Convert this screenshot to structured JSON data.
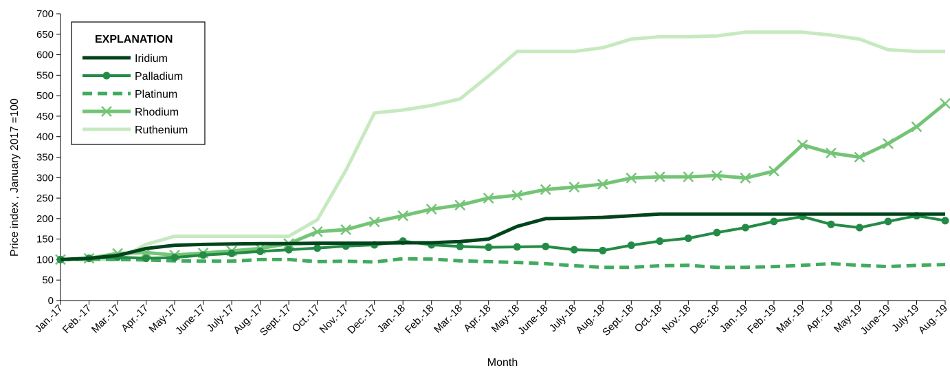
{
  "chart_data": {
    "type": "line",
    "xlabel": "Month",
    "ylabel": "Price index , January 2017 =100",
    "ylim": [
      0,
      700
    ],
    "yticks": [
      0,
      50,
      100,
      150,
      200,
      250,
      300,
      350,
      400,
      450,
      500,
      550,
      600,
      650,
      700
    ],
    "grid": false,
    "legend": {
      "title": "EXPLANATION",
      "placement": "top-left"
    },
    "categories": [
      "Jan.-17",
      "Feb.-17",
      "Mar.-17",
      "Apr.-17",
      "May-17",
      "June-17",
      "July-17",
      "Aug.-17",
      "Sept.-17",
      "Oct.-17",
      "Nov.-17",
      "Dec.-17",
      "Jan.-18",
      "Feb.-18",
      "Mar.-18",
      "Apr.-18",
      "May-18",
      "June-18",
      "July-18",
      "Aug.-18",
      "Sept.-18",
      "Oct.-18",
      "Nov.-18",
      "Dec.-18",
      "Jan.-19",
      "Feb.-19",
      "Mar.-19",
      "Apr.-19",
      "May-19",
      "June-19",
      "July-19",
      "Aug.-19"
    ],
    "series": [
      {
        "name": "Iridium",
        "color": "#00441b",
        "dash": "solid",
        "marker": "none",
        "width": 5,
        "values": [
          100,
          103,
          110,
          127,
          135,
          137,
          138,
          139,
          139,
          140,
          140,
          140,
          141,
          141,
          144,
          150,
          181,
          200,
          201,
          203,
          207,
          211,
          211,
          211,
          211,
          211,
          211,
          211,
          211,
          211,
          211,
          211
        ]
      },
      {
        "name": "Palladium",
        "color": "#238b45",
        "dash": "solid",
        "marker": "circle",
        "width": 4,
        "values": [
          100,
          103,
          106,
          103,
          105,
          111,
          115,
          120,
          124,
          128,
          133,
          136,
          145,
          136,
          132,
          130,
          131,
          132,
          124,
          122,
          135,
          145,
          152,
          166,
          178,
          193,
          205,
          186,
          178,
          193,
          207,
          195
        ]
      },
      {
        "name": "Platinum",
        "color": "#41ab5d",
        "dash": "dash",
        "marker": "none",
        "width": 5,
        "values": [
          100,
          101,
          100,
          99,
          97,
          96,
          96,
          100,
          100,
          95,
          96,
          94,
          102,
          101,
          97,
          95,
          93,
          90,
          85,
          81,
          81,
          85,
          86,
          81,
          81,
          83,
          86,
          90,
          86,
          83,
          86,
          88
        ]
      },
      {
        "name": "Rhodium",
        "color": "#74c476",
        "dash": "solid",
        "marker": "x",
        "width": 5,
        "values": [
          100,
          103,
          115,
          117,
          111,
          116,
          121,
          127,
          139,
          168,
          173,
          192,
          207,
          223,
          233,
          250,
          257,
          271,
          277,
          284,
          299,
          302,
          302,
          305,
          299,
          316,
          380,
          360,
          350,
          383,
          424,
          481
        ]
      },
      {
        "name": "Ruthenium",
        "color": "#c7e9c0",
        "dash": "solid",
        "marker": "none",
        "width": 5,
        "values": [
          100,
          100,
          100,
          137,
          157,
          157,
          157,
          157,
          157,
          197,
          318,
          458,
          465,
          476,
          492,
          548,
          608,
          608,
          608,
          617,
          638,
          644,
          644,
          646,
          655,
          655,
          655,
          648,
          638,
          612,
          608,
          608
        ]
      }
    ]
  }
}
